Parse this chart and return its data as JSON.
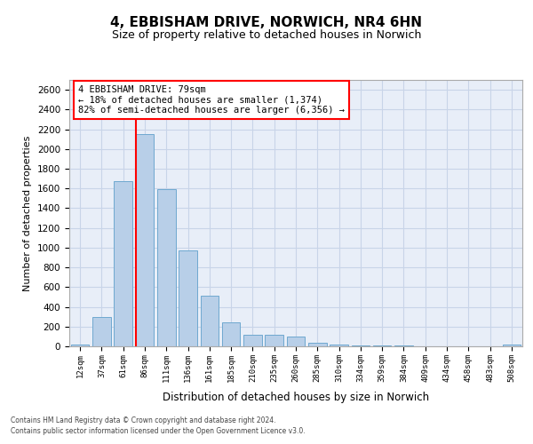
{
  "title1": "4, EBBISHAM DRIVE, NORWICH, NR4 6HN",
  "title2": "Size of property relative to detached houses in Norwich",
  "xlabel": "Distribution of detached houses by size in Norwich",
  "ylabel": "Number of detached properties",
  "bar_categories": [
    "12sqm",
    "37sqm",
    "61sqm",
    "86sqm",
    "111sqm",
    "136sqm",
    "161sqm",
    "185sqm",
    "210sqm",
    "235sqm",
    "260sqm",
    "285sqm",
    "310sqm",
    "334sqm",
    "359sqm",
    "384sqm",
    "409sqm",
    "434sqm",
    "458sqm",
    "483sqm",
    "508sqm"
  ],
  "bar_values": [
    20,
    300,
    1670,
    2150,
    1590,
    970,
    510,
    245,
    120,
    115,
    95,
    40,
    15,
    10,
    5,
    5,
    2,
    2,
    2,
    2,
    20
  ],
  "bar_color": "#b8cfe8",
  "bar_edge_color": "#6fa8d0",
  "vline_index": 3,
  "annotation_line1": "4 EBBISHAM DRIVE: 79sqm",
  "annotation_line2": "← 18% of detached houses are smaller (1,374)",
  "annotation_line3": "82% of semi-detached houses are larger (6,356) →",
  "annotation_box_color": "white",
  "annotation_box_edge": "red",
  "vline_color": "red",
  "grid_color": "#c8d4e8",
  "background_color": "#e8eef8",
  "ylim": [
    0,
    2700
  ],
  "yticks": [
    0,
    200,
    400,
    600,
    800,
    1000,
    1200,
    1400,
    1600,
    1800,
    2000,
    2200,
    2400,
    2600
  ],
  "footer1": "Contains HM Land Registry data © Crown copyright and database right 2024.",
  "footer2": "Contains public sector information licensed under the Open Government Licence v3.0."
}
